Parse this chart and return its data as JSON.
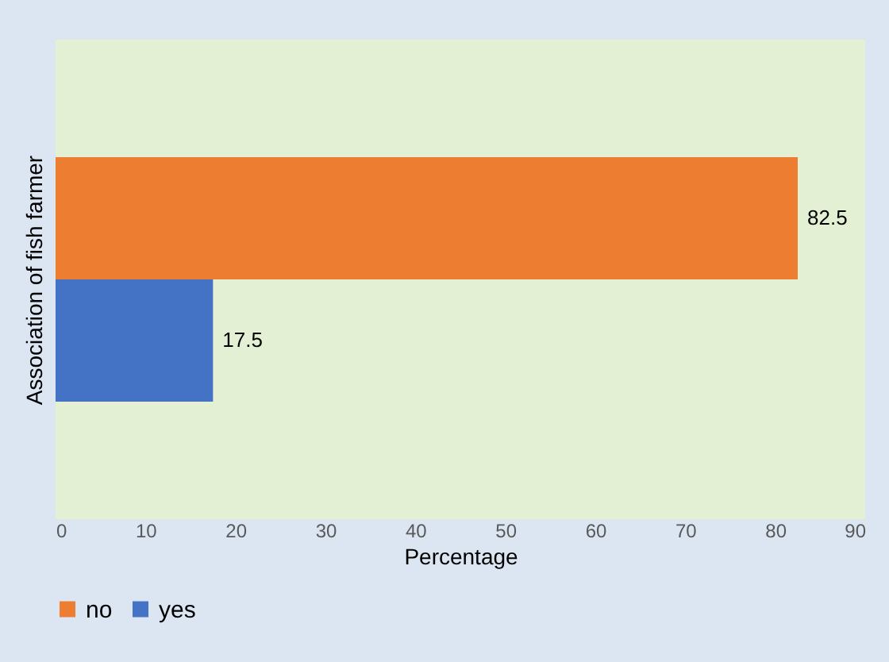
{
  "chart_data": {
    "type": "bar",
    "orientation": "horizontal",
    "categories": [
      null
    ],
    "series": [
      {
        "name": "no",
        "color": "#ed7d31",
        "values": [
          82.5
        ]
      },
      {
        "name": "yes",
        "color": "#4472c4",
        "values": [
          17.5
        ]
      }
    ],
    "xlabel": "Percentage",
    "ylabel": "Association of fish farmer",
    "xlim": [
      0,
      90
    ],
    "xticks": [
      0,
      10,
      20,
      30,
      40,
      50,
      60,
      70,
      80,
      90
    ],
    "data_labels": true,
    "grid": false,
    "legend": "bottom"
  }
}
